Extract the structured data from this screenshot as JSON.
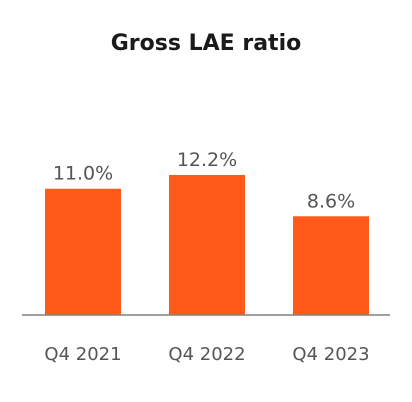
{
  "colors": {
    "bar": "#ff5a1a",
    "axis": "#808080",
    "text": "#555555",
    "title": "#1a1a1a"
  },
  "chart_data": {
    "type": "bar",
    "title": "Gross LAE ratio",
    "categories": [
      "Q4 2021",
      "Q4 2022",
      "Q4 2023"
    ],
    "values": [
      11.0,
      12.2,
      8.6
    ],
    "data_labels": [
      "11.0%",
      "12.2%",
      "8.6%"
    ],
    "ylim": [
      0,
      15
    ],
    "grid": false,
    "legend": "none"
  }
}
